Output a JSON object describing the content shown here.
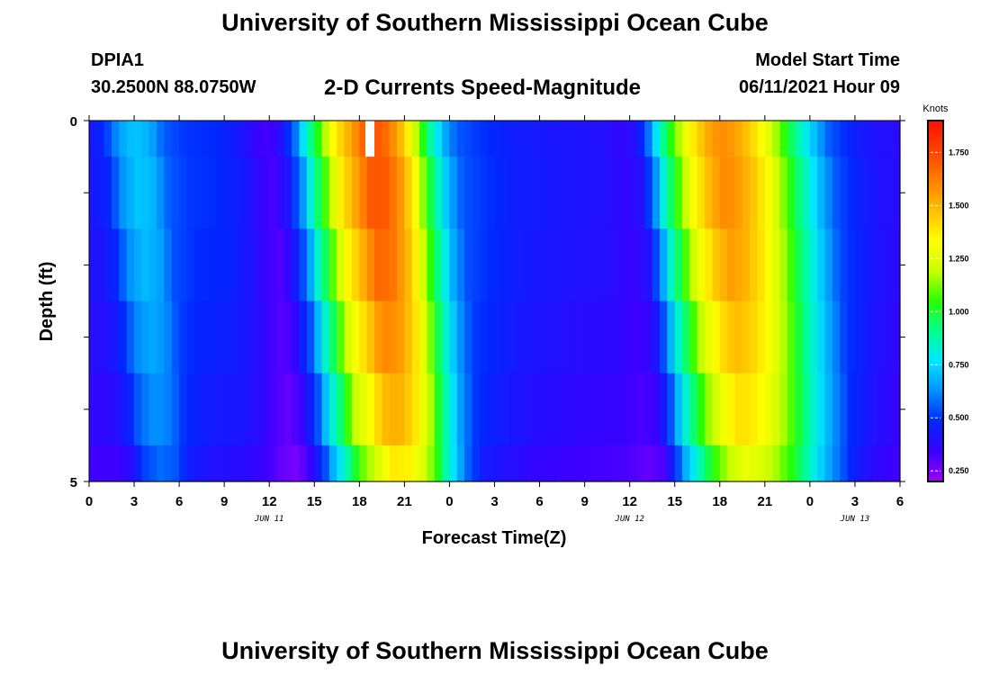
{
  "header": {
    "title": "University of Southern Mississippi Ocean Cube",
    "station_id": "DPIA1",
    "station_coords": "30.2500N  88.0750W",
    "plot_title": "2-D Currents Speed-Magnitude",
    "model_start_label": "Model Start Time",
    "model_start_value": "06/11/2021 Hour 09"
  },
  "footer": {
    "title": "University of Southern Mississippi Ocean Cube"
  },
  "chart_data": {
    "type": "heatmap",
    "title": "2-D Currents Speed-Magnitude",
    "xlabel": "Forecast Time(Z)",
    "ylabel": "Depth (ft)",
    "x_range_hours": [
      0,
      54
    ],
    "x_ticks": [
      {
        "hour": 0,
        "label": "0"
      },
      {
        "hour": 3,
        "label": "3"
      },
      {
        "hour": 6,
        "label": "6"
      },
      {
        "hour": 9,
        "label": "9"
      },
      {
        "hour": 12,
        "label": "12"
      },
      {
        "hour": 15,
        "label": "15"
      },
      {
        "hour": 18,
        "label": "18"
      },
      {
        "hour": 21,
        "label": "21"
      },
      {
        "hour": 24,
        "label": "0"
      },
      {
        "hour": 27,
        "label": "3"
      },
      {
        "hour": 30,
        "label": "6"
      },
      {
        "hour": 33,
        "label": "9"
      },
      {
        "hour": 36,
        "label": "12"
      },
      {
        "hour": 39,
        "label": "15"
      },
      {
        "hour": 42,
        "label": "18"
      },
      {
        "hour": 45,
        "label": "21"
      },
      {
        "hour": 48,
        "label": "0"
      },
      {
        "hour": 51,
        "label": "3"
      },
      {
        "hour": 54,
        "label": "6"
      }
    ],
    "date_labels": [
      {
        "hour": 12,
        "label": "JUN 11"
      },
      {
        "hour": 36,
        "label": "JUN 12"
      },
      {
        "hour": 51,
        "label": "JUN 13"
      }
    ],
    "y_range_ft": [
      0,
      5
    ],
    "y_tick_labels": [
      {
        "depth": 0,
        "label": "0"
      },
      {
        "depth": 5,
        "label": "5"
      }
    ],
    "depth_levels": [
      0,
      1,
      2,
      3,
      4,
      5
    ],
    "time_profile": [
      [
        0.0,
        0.42
      ],
      [
        1.0,
        0.48
      ],
      [
        2.0,
        0.65
      ],
      [
        3.0,
        0.72
      ],
      [
        4.0,
        0.68
      ],
      [
        5.0,
        0.55
      ],
      [
        6.5,
        0.5
      ],
      [
        8.5,
        0.48
      ],
      [
        10.0,
        0.43
      ],
      [
        11.0,
        0.36
      ],
      [
        12.0,
        0.32
      ],
      [
        12.8,
        0.4
      ],
      [
        13.8,
        0.6
      ],
      [
        14.5,
        0.85
      ],
      [
        15.3,
        1.05
      ],
      [
        16.3,
        1.35
      ],
      [
        17.5,
        1.55
      ],
      [
        18.5,
        1.72
      ],
      [
        19.5,
        1.7
      ],
      [
        20.5,
        1.55
      ],
      [
        21.3,
        1.35
      ],
      [
        22.0,
        1.1
      ],
      [
        22.7,
        0.9
      ],
      [
        23.5,
        0.7
      ],
      [
        24.5,
        0.55
      ],
      [
        26.0,
        0.5
      ],
      [
        28.0,
        0.45
      ],
      [
        31.0,
        0.42
      ],
      [
        34.0,
        0.4
      ],
      [
        35.5,
        0.36
      ],
      [
        36.5,
        0.4
      ],
      [
        37.3,
        0.6
      ],
      [
        38.0,
        0.85
      ],
      [
        38.8,
        1.05
      ],
      [
        39.8,
        1.3
      ],
      [
        41.0,
        1.5
      ],
      [
        42.0,
        1.6
      ],
      [
        43.0,
        1.55
      ],
      [
        44.0,
        1.45
      ],
      [
        45.0,
        1.3
      ],
      [
        45.8,
        1.15
      ],
      [
        46.8,
        0.95
      ],
      [
        48.0,
        0.75
      ],
      [
        49.3,
        0.55
      ],
      [
        51.0,
        0.45
      ],
      [
        52.5,
        0.4
      ],
      [
        54.0,
        0.38
      ]
    ],
    "depth_factor": [
      1.0,
      1.0,
      0.97,
      0.93,
      0.88,
      0.8
    ],
    "colorbar": {
      "unit_label": "Knots",
      "range": [
        0.2,
        1.9
      ],
      "tick_values": [
        0.25,
        0.5,
        0.75,
        1.0,
        1.25,
        1.5,
        1.75
      ],
      "tick_labels": [
        "0.250",
        "0.500",
        "0.750",
        "1.000",
        "1.250",
        "1.500",
        "1.750"
      ],
      "colors": [
        "#a000ff",
        "#3a00ff",
        "#0028ff",
        "#0090ff",
        "#00e6ff",
        "#00ff90",
        "#28ff00",
        "#c8ff00",
        "#ffff00",
        "#ffc000",
        "#ff8000",
        "#ff4000",
        "#ff1000"
      ]
    },
    "missing_cell": {
      "hour": 18.4,
      "depth_from": 0,
      "depth_to": 0.5
    }
  }
}
